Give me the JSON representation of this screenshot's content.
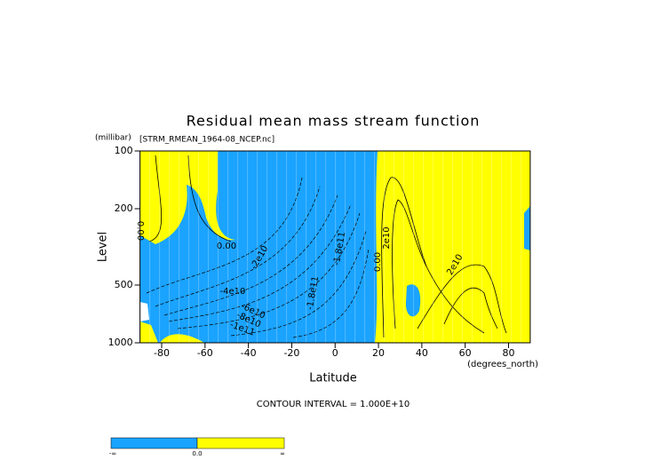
{
  "chart_data": {
    "type": "contour",
    "title": "Residual mean mass stream function",
    "subtitle": "[STRM_RMEAN_1964-08_NCEP.nc]",
    "y_unit": "(millibar)",
    "y_label": "Level",
    "x_label": "Latitude",
    "x_unit": "(degrees_north)",
    "note": "CONTOUR INTERVAL = 1.000E+10",
    "xlim": [
      -90,
      90
    ],
    "xticks": [
      -80,
      -60,
      -40,
      -20,
      0,
      20,
      40,
      60,
      80
    ],
    "ylim": [
      100,
      1000
    ],
    "yticks": [
      100,
      200,
      500,
      1000
    ],
    "y_log": true,
    "y_inverted": true,
    "colors": {
      "negative": "#1aa3ff",
      "positive": "#ffff00"
    },
    "contour_labels": [
      "0.00",
      "-2e10",
      "-4e10",
      "-6e10",
      "-8e10",
      "-1e11",
      "-1.8e11",
      "-1.8e11",
      "2e10",
      "2e10",
      "0.00",
      "0.00"
    ],
    "colorbar": {
      "labels": [
        "-∞",
        "0.0",
        "∞"
      ]
    }
  }
}
